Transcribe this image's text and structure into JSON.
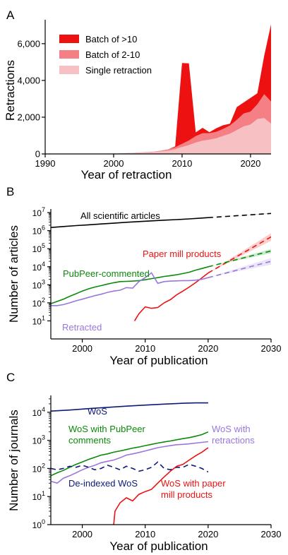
{
  "chart_data": [
    {
      "panel_label": "A",
      "type": "area",
      "stacked": true,
      "xlabel": "Year of retraction",
      "ylabel": "Retractions",
      "xlim": [
        1990,
        2023
      ],
      "ylim": [
        0,
        7300
      ],
      "xticks": [
        1990,
        2000,
        2010,
        2020
      ],
      "xtick_labels": [
        "1990",
        "2000",
        "2010",
        "2020"
      ],
      "yticks": [
        0,
        2000,
        4000,
        6000
      ],
      "ytick_labels": [
        "0",
        "2,000",
        "4,000",
        "6,000"
      ],
      "legend_position": "top-left",
      "x": [
        1990,
        1991,
        1992,
        1993,
        1994,
        1995,
        1996,
        1997,
        1998,
        1999,
        2000,
        2001,
        2002,
        2003,
        2004,
        2005,
        2006,
        2007,
        2008,
        2009,
        2010,
        2011,
        2012,
        2013,
        2014,
        2015,
        2016,
        2017,
        2018,
        2019,
        2020,
        2021,
        2022,
        2023
      ],
      "series": [
        {
          "name": "Single retraction",
          "color": "#f7c0c3",
          "values": [
            2,
            2,
            3,
            4,
            5,
            6,
            8,
            10,
            12,
            15,
            20,
            30,
            40,
            55,
            70,
            90,
            110,
            140,
            180,
            260,
            380,
            480,
            620,
            720,
            780,
            850,
            980,
            1100,
            1300,
            1500,
            1600,
            1900,
            1950,
            1650
          ]
        },
        {
          "name": "Batch of 2-10",
          "color": "#f47f84",
          "values": [
            0,
            0,
            0,
            0,
            0,
            0,
            0,
            0,
            0,
            1,
            2,
            3,
            5,
            7,
            10,
            15,
            20,
            40,
            70,
            100,
            170,
            250,
            350,
            400,
            350,
            350,
            380,
            450,
            550,
            700,
            700,
            800,
            1300,
            1200
          ]
        },
        {
          "name": "Batch of >10",
          "color": "#ee1111",
          "values": [
            0,
            0,
            0,
            0,
            0,
            0,
            0,
            0,
            0,
            0,
            0,
            0,
            0,
            0,
            0,
            0,
            0,
            0,
            0,
            50,
            4400,
            4200,
            200,
            300,
            50,
            200,
            200,
            100,
            700,
            600,
            750,
            600,
            2100,
            4200
          ]
        }
      ]
    },
    {
      "panel_label": "B",
      "type": "line",
      "yscale": "log",
      "xlabel": "Year of publication",
      "ylabel": "Number of articles",
      "xlim": [
        1995,
        2030
      ],
      "ylim_exp": [
        0,
        7.2
      ],
      "xticks": [
        2000,
        2010,
        2020,
        2030
      ],
      "xtick_labels": [
        "2000",
        "2010",
        "2020",
        "2030"
      ],
      "yticks_exp": [
        1,
        2,
        3,
        4,
        5,
        6,
        7
      ],
      "ytick_labels": [
        "10",
        "10",
        "10",
        "10",
        "10",
        "10",
        "10"
      ],
      "ytick_exponents": [
        "1",
        "2",
        "3",
        "4",
        "5",
        "6",
        "7"
      ],
      "series": [
        {
          "name": "All scientific articles",
          "color": "#000000",
          "x": [
            1995,
            1997,
            1999,
            2001,
            2003,
            2005,
            2007,
            2009,
            2011,
            2013,
            2015,
            2017,
            2019,
            2020
          ],
          "y": [
            1500000,
            1700000,
            1900000,
            2100000,
            2350000,
            2600000,
            2900000,
            3200000,
            3500000,
            3800000,
            4100000,
            4500000,
            5000000,
            5300000
          ],
          "projection": {
            "x": [
              2020,
              2030
            ],
            "y": [
              5300000,
              9000000
            ],
            "band": [
              0.96,
              1.04
            ]
          }
        },
        {
          "name": "Paper mill products",
          "color": "#ee1111",
          "x": [
            2008.3,
            2009,
            2010,
            2011,
            2012,
            2013,
            2014,
            2015,
            2016,
            2017,
            2018,
            2019,
            2020
          ],
          "y": [
            10,
            25,
            60,
            50,
            55,
            100,
            150,
            280,
            450,
            750,
            1300,
            2400,
            4500
          ],
          "projection": {
            "x": [
              2020,
              2030
            ],
            "y": [
              4500,
              450000
            ],
            "band": [
              0.6,
              1.6
            ]
          }
        },
        {
          "name": "PubPeer-commented",
          "color": "#0a8a0a",
          "x": [
            1995,
            1996,
            1997,
            1998,
            1999,
            2000,
            2001,
            2002,
            2003,
            2004,
            2005,
            2006,
            2007,
            2008,
            2009,
            2010,
            2011,
            2012,
            2013,
            2014,
            2015,
            2016,
            2017,
            2018,
            2019,
            2020
          ],
          "y": [
            90,
            120,
            160,
            230,
            320,
            450,
            600,
            750,
            900,
            1100,
            1300,
            1500,
            1550,
            1600,
            1700,
            1900,
            2200,
            2500,
            2900,
            3200,
            3600,
            4200,
            5000,
            6500,
            8000,
            10000
          ],
          "projection": {
            "x": [
              2020,
              2030
            ],
            "y": [
              10000,
              75000
            ],
            "band": [
              0.75,
              1.3
            ]
          }
        },
        {
          "name": "Retracted",
          "color": "#9977dd",
          "x": [
            1995,
            1996,
            1997,
            1998,
            1999,
            2000,
            2001,
            2002,
            2003,
            2004,
            2005,
            2006,
            2007,
            2008,
            2009,
            2010,
            2011,
            2012,
            2013,
            2014,
            2015,
            2016,
            2017,
            2018,
            2019,
            2020
          ],
          "y": [
            70,
            70,
            80,
            100,
            130,
            160,
            200,
            250,
            300,
            380,
            450,
            500,
            700,
            650,
            1500,
            2500,
            4600,
            1200,
            1500,
            1600,
            1650,
            1700,
            1700,
            1800,
            2000,
            2500
          ],
          "projection": {
            "x": [
              2020,
              2030
            ],
            "y": [
              2500,
              20000
            ],
            "band": [
              0.65,
              1.5
            ]
          }
        }
      ]
    },
    {
      "panel_label": "C",
      "type": "line",
      "yscale": "log",
      "xlabel": "Year of publication",
      "ylabel": "Number of journals",
      "xlim": [
        1995,
        2030
      ],
      "ylim_exp": [
        0,
        4.6
      ],
      "xticks": [
        2000,
        2010,
        2020,
        2030
      ],
      "xtick_labels": [
        "2000",
        "2010",
        "2020",
        "2030"
      ],
      "yticks_exp": [
        0,
        1,
        2,
        3,
        4
      ],
      "ytick_labels": [
        "10",
        "10",
        "10",
        "10",
        "10"
      ],
      "ytick_exponents": [
        "0",
        "1",
        "2",
        "3",
        "4"
      ],
      "series": [
        {
          "name": "WoS",
          "color": "#0c1a78",
          "x": [
            1995,
            1998,
            2001,
            2004,
            2007,
            2010,
            2013,
            2016,
            2018,
            2020
          ],
          "y": [
            11000,
            12000,
            13500,
            15000,
            16500,
            18000,
            19500,
            21000,
            21500,
            21500
          ]
        },
        {
          "name": "WoS with PubPeer comments",
          "color": "#0a8a0a",
          "x": [
            1995,
            1996,
            1997,
            1998,
            1999,
            2000,
            2001,
            2002,
            2003,
            2004,
            2005,
            2006,
            2007,
            2008,
            2009,
            2010,
            2011,
            2012,
            2013,
            2014,
            2015,
            2016,
            2017,
            2018,
            2019,
            2020
          ],
          "y": [
            55,
            70,
            85,
            110,
            140,
            170,
            210,
            250,
            300,
            330,
            380,
            420,
            470,
            530,
            580,
            650,
            720,
            800,
            880,
            950,
            1050,
            1150,
            1250,
            1400,
            1600,
            2000
          ]
        },
        {
          "name": "WoS with retractions",
          "color": "#9977dd",
          "x": [
            1995,
            1996,
            1997,
            1998,
            1999,
            2000,
            2001,
            2002,
            2003,
            2004,
            2005,
            2006,
            2007,
            2008,
            2009,
            2010,
            2011,
            2012,
            2013,
            2014,
            2015,
            2016,
            2017,
            2018,
            2019,
            2020
          ],
          "y": [
            35,
            30,
            45,
            55,
            70,
            90,
            110,
            130,
            160,
            180,
            200,
            240,
            300,
            330,
            370,
            420,
            480,
            550,
            600,
            650,
            700,
            720,
            750,
            800,
            850,
            900
          ]
        },
        {
          "name": "De-indexed WoS",
          "color": "#0c1a78",
          "dashed": true,
          "x": [
            1995,
            1996,
            1997,
            1998,
            1999,
            2000,
            2001,
            2002,
            2003,
            2004,
            2005,
            2006,
            2007,
            2008,
            2009,
            2010,
            2011,
            2012,
            2013,
            2014,
            2015,
            2016,
            2017,
            2018,
            2019,
            2020
          ],
          "y": [
            100,
            90,
            100,
            120,
            110,
            130,
            110,
            90,
            100,
            130,
            110,
            90,
            120,
            100,
            80,
            90,
            110,
            170,
            100,
            90,
            110,
            110,
            140,
            120,
            100,
            75
          ]
        },
        {
          "name": "WoS with paper mill products",
          "color": "#ee1111",
          "x": [
            2005,
            2005.2,
            2006,
            2007,
            2008,
            2009,
            2010,
            2011,
            2012,
            2013,
            2014,
            2015,
            2016,
            2017,
            2018,
            2019,
            2020
          ],
          "y": [
            1,
            3,
            6,
            9,
            7,
            12,
            15,
            18,
            30,
            50,
            80,
            120,
            140,
            200,
            280,
            380,
            550
          ]
        }
      ]
    }
  ]
}
